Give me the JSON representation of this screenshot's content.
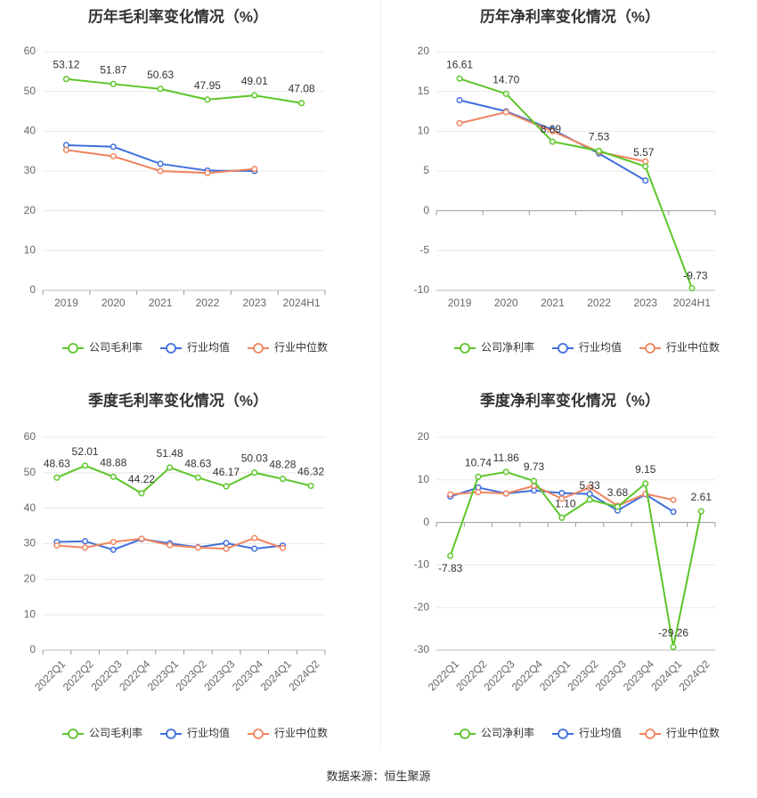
{
  "footer": {
    "source": "数据来源：恒生聚源"
  },
  "colors": {
    "company": "#5cc529",
    "industry_avg": "#3f6fdc",
    "industry_median": "#f0845f",
    "grid": "#e8e8e8",
    "axis": "#999999"
  },
  "chart_data": [
    {
      "type": "line",
      "title": "历年毛利率变化情况（%）",
      "categories": [
        "2019",
        "2020",
        "2021",
        "2022",
        "2023",
        "2024H1"
      ],
      "ylim": [
        0,
        60
      ],
      "yticks": [
        0,
        10,
        20,
        30,
        40,
        50,
        60
      ],
      "rotate_x": false,
      "series": [
        {
          "name": "公司毛利率",
          "color": "#5cc529",
          "labeled": true,
          "values": [
            53.12,
            51.87,
            50.63,
            47.95,
            49.01,
            47.08
          ]
        },
        {
          "name": "行业均值",
          "color": "#3f6fdc",
          "labeled": false,
          "values": [
            36.5,
            36.1,
            31.8,
            30.1,
            30.0,
            null
          ]
        },
        {
          "name": "行业中位数",
          "color": "#f0845f",
          "labeled": false,
          "values": [
            35.3,
            33.7,
            30.0,
            29.5,
            30.5,
            null
          ]
        }
      ],
      "legend": [
        "公司毛利率",
        "行业均值",
        "行业中位数"
      ]
    },
    {
      "type": "line",
      "title": "历年净利率变化情况（%）",
      "categories": [
        "2019",
        "2020",
        "2021",
        "2022",
        "2023",
        "2024H1"
      ],
      "ylim": [
        -10,
        20
      ],
      "yticks": [
        -10,
        -5,
        0,
        5,
        10,
        15,
        20
      ],
      "rotate_x": false,
      "series": [
        {
          "name": "公司净利率",
          "color": "#5cc529",
          "labeled": true,
          "values": [
            16.61,
            14.7,
            8.69,
            7.53,
            5.57,
            -9.73
          ]
        },
        {
          "name": "行业均值",
          "color": "#3f6fdc",
          "labeled": false,
          "values": [
            13.9,
            12.5,
            10.2,
            7.2,
            3.8,
            null
          ]
        },
        {
          "name": "行业中位数",
          "color": "#f0845f",
          "labeled": false,
          "values": [
            11.0,
            12.4,
            10.0,
            7.4,
            6.2,
            null
          ]
        }
      ],
      "legend": [
        "公司净利率",
        "行业均值",
        "行业中位数"
      ]
    },
    {
      "type": "line",
      "title": "季度毛利率变化情况（%）",
      "categories": [
        "2022Q1",
        "2022Q2",
        "2022Q3",
        "2022Q4",
        "2023Q1",
        "2023Q2",
        "2023Q3",
        "2023Q4",
        "2024Q1",
        "2024Q2"
      ],
      "ylim": [
        0,
        60
      ],
      "yticks": [
        0,
        10,
        20,
        30,
        40,
        50,
        60
      ],
      "rotate_x": true,
      "series": [
        {
          "name": "公司毛利率",
          "color": "#5cc529",
          "labeled": true,
          "values": [
            48.63,
            52.01,
            48.88,
            44.22,
            51.48,
            48.63,
            46.17,
            50.03,
            48.28,
            46.32
          ]
        },
        {
          "name": "行业均值",
          "color": "#3f6fdc",
          "labeled": false,
          "values": [
            30.5,
            30.7,
            28.3,
            31.3,
            30.1,
            29.0,
            30.2,
            28.6,
            29.5,
            null
          ]
        },
        {
          "name": "行业中位数",
          "color": "#f0845f",
          "labeled": false,
          "values": [
            29.5,
            28.9,
            30.5,
            31.4,
            29.6,
            28.9,
            28.6,
            31.6,
            28.8,
            null
          ]
        }
      ],
      "legend": [
        "公司毛利率",
        "行业均值",
        "行业中位数"
      ]
    },
    {
      "type": "line",
      "title": "季度净利率变化情况（%）",
      "categories": [
        "2022Q1",
        "2022Q2",
        "2022Q3",
        "2022Q4",
        "2023Q1",
        "2023Q2",
        "2023Q3",
        "2023Q4",
        "2024Q1",
        "2024Q2"
      ],
      "ylim": [
        -30,
        20
      ],
      "yticks": [
        -30,
        -20,
        -10,
        0,
        10,
        20
      ],
      "rotate_x": true,
      "series": [
        {
          "name": "公司净利率",
          "color": "#5cc529",
          "labeled": true,
          "values": [
            -7.83,
            10.74,
            11.86,
            9.73,
            1.1,
            5.33,
            3.68,
            9.15,
            -29.26,
            2.61
          ]
        },
        {
          "name": "行业均值",
          "color": "#3f6fdc",
          "labeled": false,
          "values": [
            6.1,
            8.2,
            6.8,
            7.5,
            6.9,
            6.7,
            2.8,
            6.6,
            2.5,
            null
          ]
        },
        {
          "name": "行业中位数",
          "color": "#f0845f",
          "labeled": false,
          "values": [
            6.6,
            7.1,
            6.8,
            8.6,
            5.6,
            8.2,
            3.9,
            6.7,
            5.3,
            null
          ]
        }
      ],
      "legend": [
        "公司净利率",
        "行业均值",
        "行业中位数"
      ]
    }
  ]
}
